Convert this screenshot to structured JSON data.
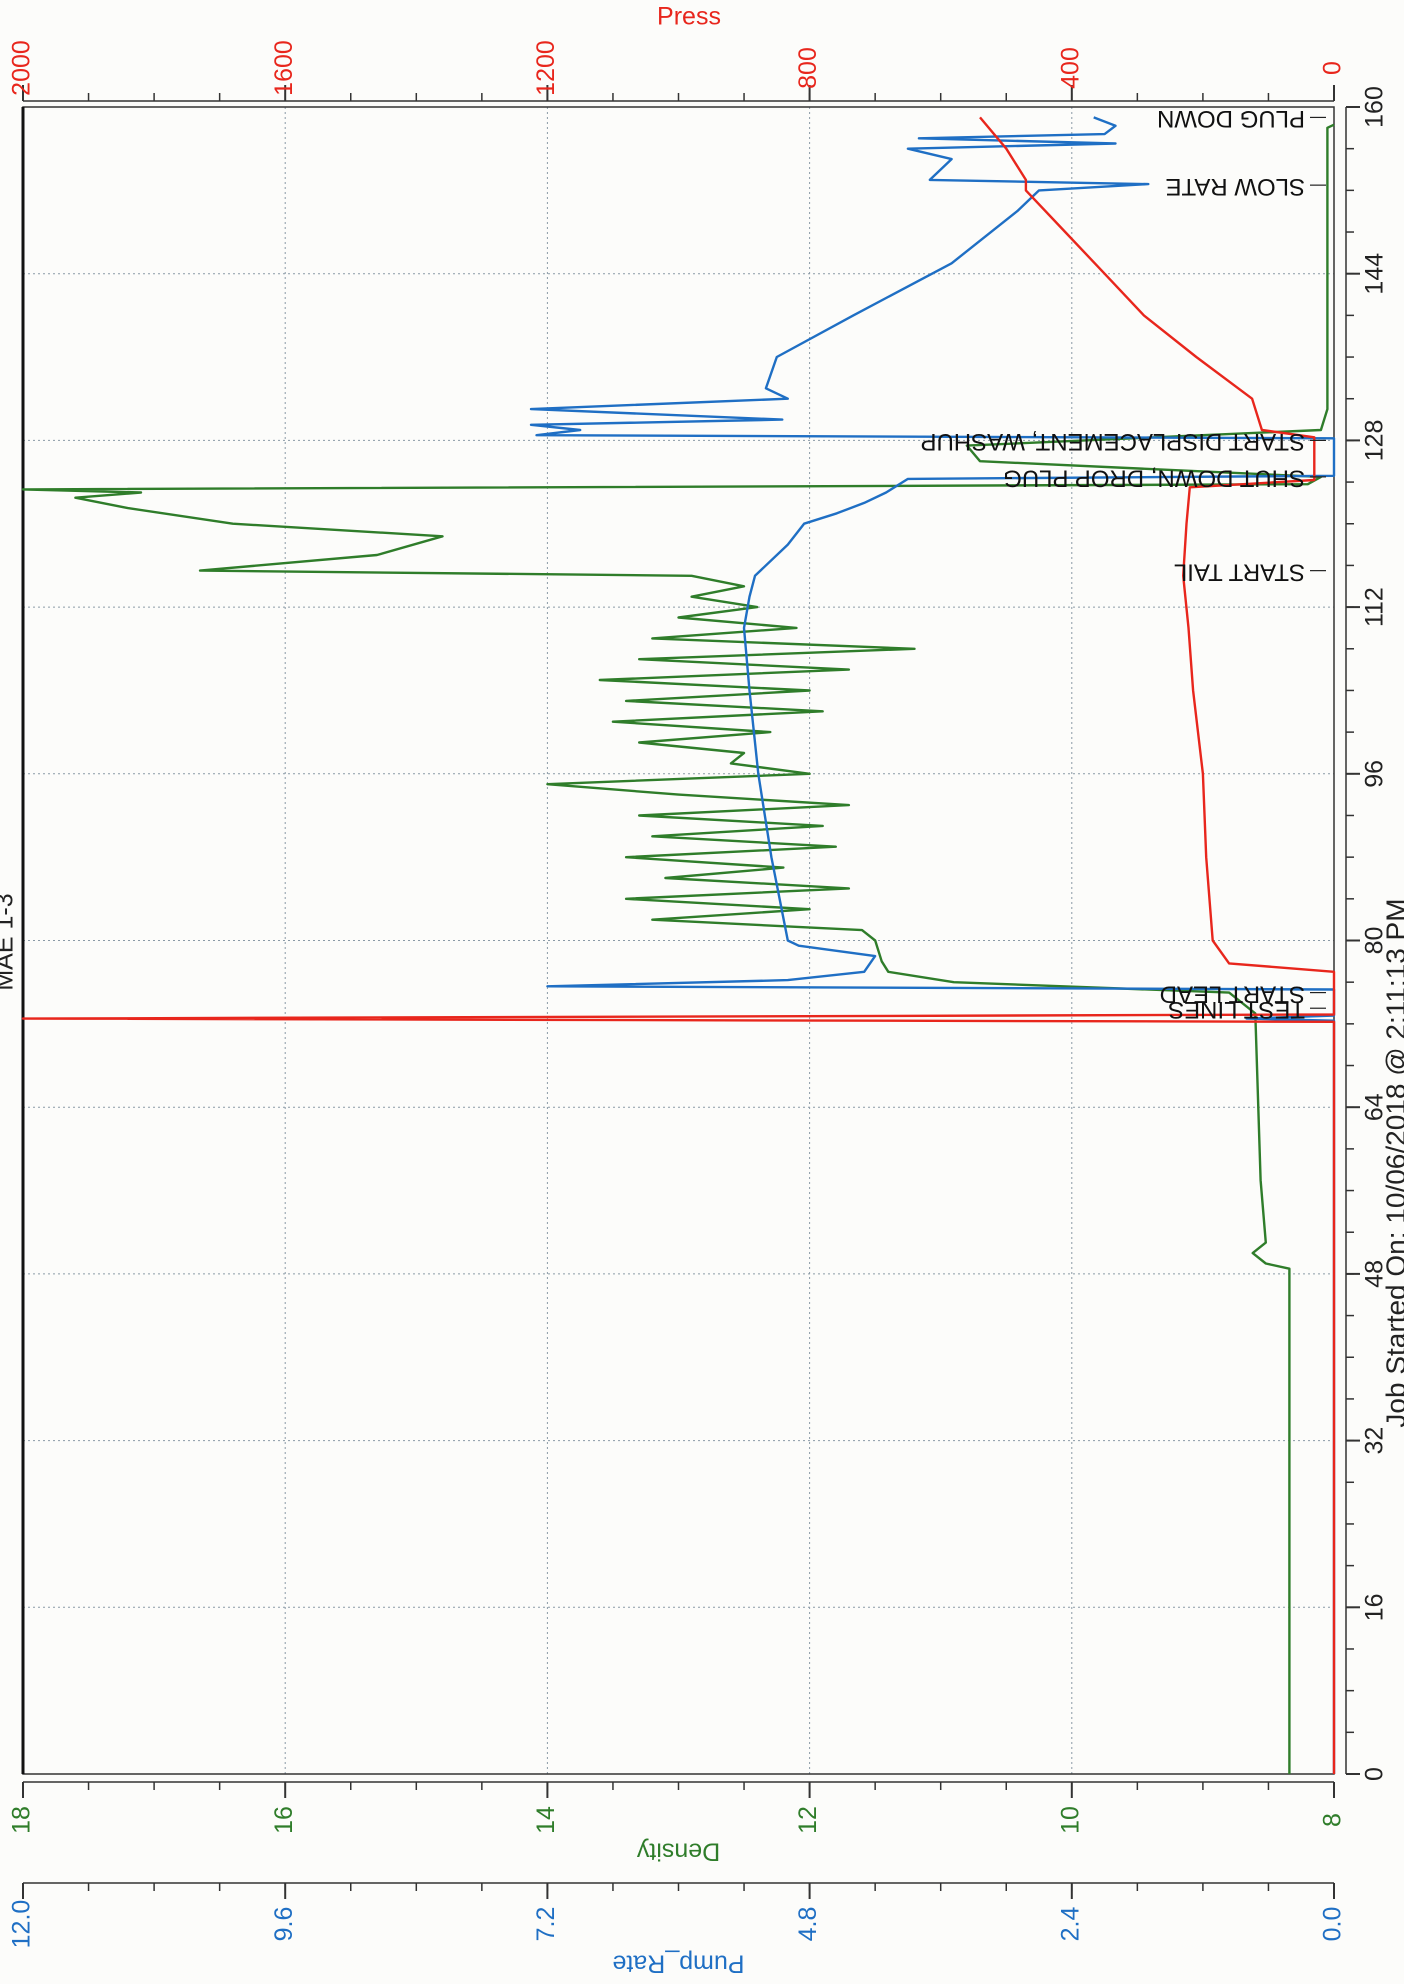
{
  "chart_data": {
    "type": "line",
    "title": "MAE 1-3",
    "xlabel": "Job Started On: 10/06/2018 @ 2:11:13 PM",
    "xlim": [
      0,
      160
    ],
    "xticks": [
      0,
      16,
      32,
      48,
      64,
      80,
      96,
      112,
      128,
      144,
      160
    ],
    "ylabel": "Density",
    "ylim": [
      8,
      18
    ],
    "yticks": [
      8,
      10,
      12,
      14,
      16,
      18
    ],
    "y2label": "Press",
    "y2lim": [
      0,
      2000
    ],
    "y2ticks": [
      0,
      400,
      800,
      1200,
      1600,
      2000
    ],
    "y3label": "Pump_Rate",
    "y3lim": [
      0,
      12
    ],
    "y3ticks": [
      {
        "value": 0,
        "label": "0.0"
      },
      {
        "value": 2.4,
        "label": "2.4"
      },
      {
        "value": 4.8,
        "label": "4.8"
      },
      {
        "value": 7.2,
        "label": "7.2"
      },
      {
        "value": 9.6,
        "label": "9.6"
      },
      {
        "value": 12,
        "label": "12.0"
      }
    ],
    "grid": true,
    "series": [
      {
        "name": "Density",
        "axis": "y",
        "color": "#2f7d2a",
        "x": [
          0,
          48.5,
          49,
          50,
          51,
          57,
          73,
          75,
          76,
          77,
          78,
          80,
          81,
          82,
          83,
          84,
          85,
          86,
          87,
          88,
          89,
          90,
          91,
          92,
          93,
          94,
          95,
          96,
          97,
          98,
          99,
          100,
          101,
          102,
          103,
          104,
          105,
          106,
          107,
          108,
          109,
          110,
          111,
          112,
          113,
          114,
          115,
          115.5,
          117,
          118.8,
          120,
          121.5,
          122.5,
          123,
          123.3,
          123.8,
          124.5,
          126,
          127.5,
          129,
          131,
          158,
          158.3
        ],
        "values": [
          8.34,
          8.34,
          8.52,
          8.62,
          8.52,
          8.56,
          8.6,
          8.8,
          10.9,
          11.4,
          11.45,
          11.5,
          11.6,
          13.2,
          12.0,
          13.4,
          11.7,
          13.1,
          12.2,
          13.4,
          11.8,
          13.2,
          11.9,
          13.3,
          11.7,
          13.0,
          14.0,
          12.0,
          12.6,
          12.5,
          13.3,
          12.3,
          13.5,
          11.9,
          13.4,
          12.0,
          13.6,
          11.7,
          13.3,
          11.2,
          13.2,
          12.1,
          13.0,
          12.4,
          12.9,
          12.5,
          12.9,
          16.65,
          15.3,
          14.8,
          16.4,
          17.2,
          17.6,
          17.1,
          18,
          8.2,
          8.1,
          10.7,
          10.8,
          8.1,
          8.05,
          8.05,
          8.0
        ]
      },
      {
        "name": "Pump_Rate",
        "axis": "y3",
        "color": "#1f6fc4",
        "x": [
          0,
          72.3,
          72.5,
          72.8,
          75.3,
          75.6,
          76.2,
          77,
          78.5,
          79.5,
          80,
          88,
          96,
          104,
          110,
          113,
          115,
          118,
          120,
          121,
          122,
          123,
          124.3,
          124.6,
          128.2,
          128.5,
          129,
          129.5,
          130,
          131,
          132,
          133,
          136,
          140,
          145,
          150,
          152,
          152.6,
          153,
          155,
          156,
          156.5,
          157,
          157.4,
          158.2,
          159
        ],
        "values": [
          0,
          0,
          0.8,
          0,
          0,
          7.2,
          5.0,
          4.3,
          4.2,
          4.9,
          5.0,
          5.15,
          5.27,
          5.35,
          5.4,
          5.35,
          5.3,
          5.0,
          4.85,
          4.55,
          4.3,
          4.1,
          3.9,
          0,
          0,
          7.3,
          6.9,
          7.35,
          5.05,
          7.35,
          5.0,
          5.2,
          5.1,
          4.4,
          3.5,
          2.9,
          2.7,
          1.7,
          3.7,
          3.5,
          3.9,
          2.0,
          3.8,
          2.1,
          2.0,
          2.2
        ]
      },
      {
        "name": "Press",
        "axis": "y2",
        "color": "#e8261c",
        "x": [
          0,
          72.2,
          72.5,
          72.9,
          77,
          77.8,
          80,
          88,
          96,
          104,
          110,
          115,
          120,
          123.5,
          124.2,
          128.3,
          129,
          132,
          136,
          140,
          144,
          148,
          152,
          153,
          156,
          159
        ],
        "values": [
          0,
          0,
          2000,
          0,
          0,
          160,
          185,
          195,
          200,
          215,
          222,
          230,
          225,
          220,
          30,
          30,
          110,
          125,
          210,
          290,
          350,
          410,
          470,
          470,
          500,
          540
        ]
      }
    ],
    "annotations": [
      {
        "x": 73.5,
        "text": "TEST LINES"
      },
      {
        "x": 75,
        "text": "START LEAD"
      },
      {
        "x": 115.5,
        "text": "START TAIL"
      },
      {
        "x": 124.5,
        "text": "SHUT DOWN, DROP PLUG"
      },
      {
        "x": 128,
        "text": "START DISPLACEMENT, WASHUP"
      },
      {
        "x": 152.5,
        "text": "SLOW RATE"
      },
      {
        "x": 159,
        "text": "PLUG DOWN"
      }
    ]
  }
}
